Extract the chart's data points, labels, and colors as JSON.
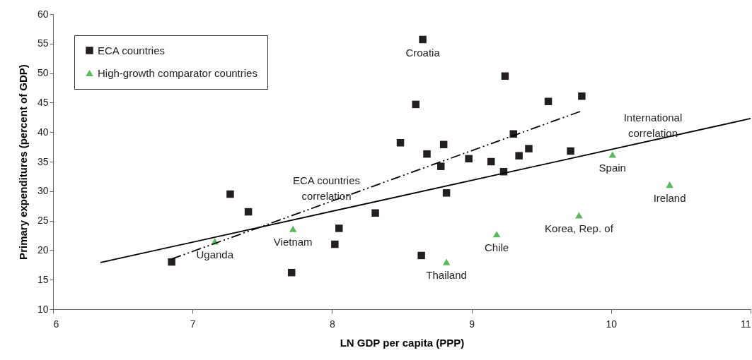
{
  "chart_data": {
    "type": "scatter",
    "xlabel": "LN GDP per capita (PPP)",
    "ylabel": "Primary expenditures (percent of GDP)",
    "xlim": [
      6,
      11
    ],
    "xticks": [
      {
        "value": 6,
        "label": "6"
      },
      {
        "value": 7,
        "label": "7"
      },
      {
        "value": 8,
        "label": "8"
      },
      {
        "value": 9,
        "label": "9"
      },
      {
        "value": 10,
        "label": "10"
      },
      {
        "value": 11,
        "label": "11"
      }
    ],
    "ylim": [
      10,
      60
    ],
    "yticks": [
      10,
      15,
      20,
      25,
      30,
      35,
      40,
      45,
      50,
      55,
      60
    ],
    "grid": false,
    "legend": "top left",
    "series": [
      {
        "name": "ECA countries",
        "marker": "square",
        "color": "#231f20",
        "x": [
          6.85,
          7.27,
          7.4,
          7.71,
          8.02,
          8.05,
          8.31,
          8.49,
          8.6,
          8.65,
          8.64,
          8.68,
          8.78,
          8.8,
          8.82,
          8.98,
          9.14,
          9.23,
          9.24,
          9.3,
          9.34,
          9.41,
          9.55,
          9.71,
          9.79
        ],
        "values": [
          18.0,
          29.5,
          26.5,
          16.2,
          21.0,
          23.7,
          26.3,
          38.2,
          44.7,
          55.7,
          19.1,
          36.3,
          34.2,
          37.9,
          29.7,
          35.5,
          35.0,
          33.3,
          49.5,
          39.7,
          36.0,
          37.2,
          45.2,
          36.8,
          46.1
        ]
      },
      {
        "name": "High-growth comparator countries",
        "marker": "triangle",
        "color": "#5cb85c",
        "x": [
          7.16,
          7.72,
          8.82,
          9.18,
          9.77,
          10.01,
          10.42
        ],
        "values": [
          21.5,
          23.6,
          18.0,
          22.7,
          25.9,
          36.2,
          31.1
        ]
      },
      {
        "type": "line",
        "marker": "none",
        "line_style": "solid",
        "color": "#000000",
        "x": [
          6.34,
          11.0
        ],
        "values": [
          17.9,
          42.3
        ]
      },
      {
        "type": "line",
        "marker": "none",
        "line_style": "dashed",
        "color": "#000000",
        "x": [
          6.85,
          9.79
        ],
        "values": [
          18.5,
          43.6
        ]
      }
    ],
    "annotations": [
      {
        "text": "Croatia",
        "x": 8.65,
        "y": 55.7
      },
      {
        "text": "Uganda",
        "x": 7.16,
        "y": 21.5
      },
      {
        "text": "Vietnam",
        "x": 7.72,
        "y": 23.6
      },
      {
        "text": "Thailand",
        "x": 8.82,
        "y": 18.0
      },
      {
        "text": "Chile",
        "x": 9.18,
        "y": 22.7
      },
      {
        "text": "Korea, Rep. of",
        "x": 9.77,
        "y": 25.9
      },
      {
        "text": "Spain",
        "x": 10.01,
        "y": 36.2
      },
      {
        "text": "Ireland",
        "x": 10.42,
        "y": 31.1
      },
      {
        "text": "International\ncorrelation",
        "x": 10.3,
        "y": 38.6
      },
      {
        "text": "ECA countries\ncorrelation",
        "x": 7.96,
        "y": 28.0
      }
    ]
  }
}
